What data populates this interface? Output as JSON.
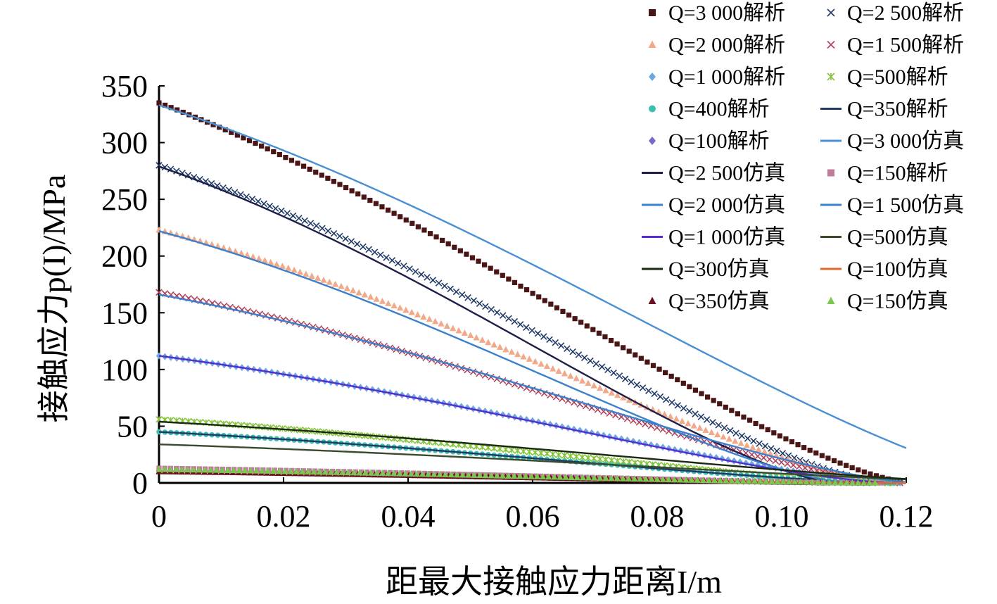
{
  "chart_data": {
    "type": "line",
    "xlabel": "距最大接触应力距离I/m",
    "ylabel": "接触应力p(I)/MPa",
    "xlim": [
      0,
      0.12
    ],
    "ylim": [
      0,
      350
    ],
    "xticks": [
      "0",
      "0.02",
      "0.04",
      "0.06",
      "0.08",
      "0.10",
      "0.12"
    ],
    "yticks": [
      "0",
      "50",
      "100",
      "150",
      "200",
      "250",
      "300",
      "350"
    ],
    "grid": false,
    "legend_position": "top-right",
    "series": [
      {
        "name": "Q=3 000解析",
        "style": "markers",
        "marker": "square",
        "color": "#4a1515",
        "peak": 335,
        "width": 0.121
      },
      {
        "name": "Q=2 500解析",
        "style": "markers",
        "marker": "x",
        "color": "#1f3a68",
        "peak": 280,
        "width": 0.117
      },
      {
        "name": "Q=2 000解析",
        "style": "markers",
        "marker": "triangle",
        "color": "#f2a98a",
        "peak": 223,
        "width": 0.118
      },
      {
        "name": "Q=1 500解析",
        "style": "markers",
        "marker": "x",
        "color": "#b0405a",
        "peak": 168,
        "width": 0.119
      },
      {
        "name": "Q=1 000解析",
        "style": "markers",
        "marker": "diamond",
        "color": "#6aa9e0",
        "peak": 112,
        "width": 0.119
      },
      {
        "name": "Q=500解析",
        "style": "markers",
        "marker": "asterisk",
        "color": "#86c43a",
        "peak": 56,
        "width": 0.118
      },
      {
        "name": "Q=400解析",
        "style": "markers",
        "marker": "circle",
        "color": "#3fbfae",
        "peak": 45,
        "width": 0.118
      },
      {
        "name": "Q=350解析",
        "style": "line",
        "color": "#1f3a68",
        "peak": 45,
        "width": 0.118
      },
      {
        "name": "Q=100解析",
        "style": "markers",
        "marker": "diamond",
        "color": "#7a68c8",
        "peak": 11,
        "width": 0.115
      },
      {
        "name": "Q=3 000仿真",
        "style": "line",
        "color": "#4a8fd4",
        "peak": 333,
        "width": 0.14
      },
      {
        "name": "Q=2 500仿真",
        "style": "line",
        "color": "#1d1f4a",
        "peak": 279,
        "width": 0.109
      },
      {
        "name": "Q=150解析",
        "style": "markers",
        "marker": "square",
        "color": "#c07a9a",
        "peak": 13,
        "width": 0.116
      },
      {
        "name": "Q=2 000仿真",
        "style": "line",
        "color": "#3a80cc",
        "peak": 222,
        "width": 0.111
      },
      {
        "name": "Q=1 500仿真",
        "style": "line",
        "color": "#3a80cc",
        "peak": 166,
        "width": 0.122
      },
      {
        "name": "Q=1 000仿真",
        "style": "line",
        "color": "#5a2ad0",
        "peak": 112,
        "width": 0.118
      },
      {
        "name": "Q=500仿真",
        "style": "line",
        "color": "#3a4a2a",
        "peak": 34,
        "width": 0.14
      },
      {
        "name": "Q=300仿真",
        "style": "line",
        "color": "#1a2a10",
        "peak": 54,
        "width": 0.135
      },
      {
        "name": "Q=100仿真",
        "style": "line",
        "color": "#e06a2a",
        "peak": 10,
        "width": 0.115
      },
      {
        "name": "Q=350仿真",
        "style": "markers",
        "marker": "triangle",
        "color": "#6a1020",
        "peak": 10,
        "width": 0.114
      },
      {
        "name": "Q=150仿真",
        "style": "markers",
        "marker": "triangle",
        "color": "#7ac850",
        "peak": 12,
        "width": 0.115
      }
    ]
  }
}
